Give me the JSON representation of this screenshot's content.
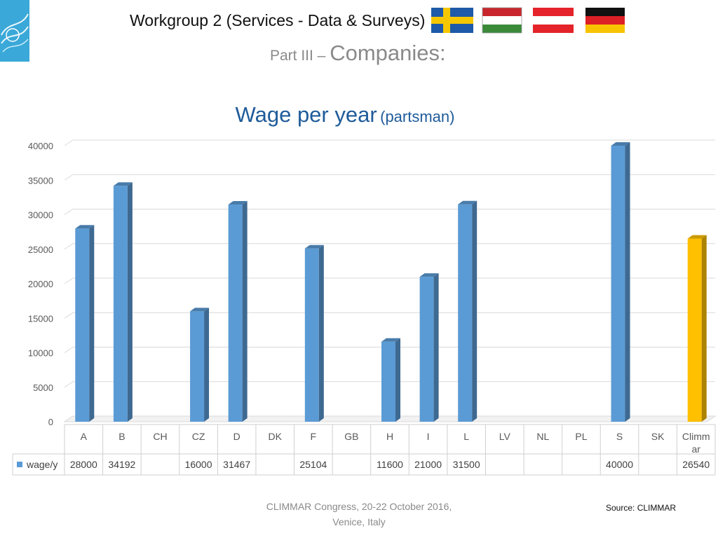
{
  "header": {
    "title": "Workgroup 2 (Services - Data & Surveys)",
    "flags": [
      "sweden-flag",
      "hungary-flag",
      "austria-flag",
      "germany-flag"
    ]
  },
  "subtitle": {
    "prefix": "Part III – ",
    "main": "Companies:"
  },
  "chart_data": {
    "type": "bar",
    "title": "Wage per year",
    "subtitle": "(partsman)",
    "categories": [
      "A",
      "B",
      "CH",
      "CZ",
      "D",
      "DK",
      "F",
      "GB",
      "H",
      "I",
      "L",
      "LV",
      "NL",
      "PL",
      "S",
      "SK",
      "Climmar"
    ],
    "series": [
      {
        "name": "wage/y",
        "values": [
          28000,
          34192,
          null,
          16000,
          31467,
          null,
          25104,
          null,
          11600,
          21000,
          31500,
          null,
          null,
          null,
          40000,
          null,
          26540
        ],
        "color": "#5b9bd5"
      }
    ],
    "highlight": {
      "category": "Climmar",
      "color": "#ffc000"
    },
    "ylim": [
      0,
      40000
    ],
    "yticks": [
      0,
      5000,
      10000,
      15000,
      20000,
      25000,
      30000,
      35000,
      40000
    ],
    "grid": true,
    "data_table": true,
    "bar_3d": true
  },
  "footer": {
    "line1": "CLIMMAR Congress, 20-22 October 2016,",
    "line2": "Venice, Italy",
    "source": "Source: CLIMMAR"
  },
  "colors": {
    "bar": "#5b9bd5",
    "bar_highlight": "#ffc000",
    "title_blue": "#1f5b9a",
    "gray_text": "#8a8a8a"
  }
}
